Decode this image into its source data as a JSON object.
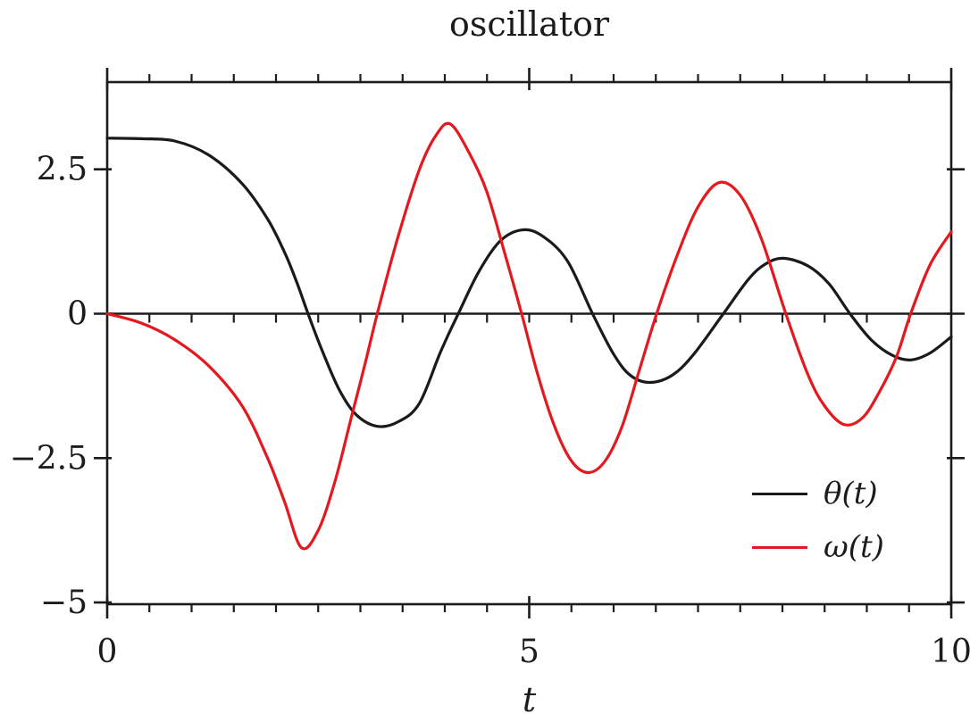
{
  "chart_data": {
    "type": "line",
    "title": "oscillator",
    "xlabel": "t",
    "ylabel": "",
    "xlim": [
      0,
      10
    ],
    "ylim": [
      -5.03,
      4.01
    ],
    "grid": false,
    "frame": "box",
    "zero_axis": true,
    "legend_position": "bottom-right",
    "x_major_ticks": [
      0,
      5,
      10
    ],
    "x_major_labels": [
      "0",
      "5",
      "10"
    ],
    "x_minor_step": 0.5,
    "y_major_ticks": [
      -5,
      -2.5,
      0,
      2.5
    ],
    "y_major_labels": [
      "−5",
      "−2.5",
      "0",
      "2.5"
    ],
    "axis_color": "#1c1c1c",
    "series": [
      {
        "name": "θ(t)",
        "color": "#1a1a1a",
        "points": [
          [
            0.0,
            3.04
          ],
          [
            0.4,
            3.03
          ],
          [
            0.8,
            2.99
          ],
          [
            1.2,
            2.75
          ],
          [
            1.6,
            2.25
          ],
          [
            1.9,
            1.64
          ],
          [
            2.1,
            1.07
          ],
          [
            2.25,
            0.53
          ],
          [
            2.38,
            0.0
          ],
          [
            2.55,
            -0.65
          ],
          [
            2.75,
            -1.32
          ],
          [
            2.95,
            -1.75
          ],
          [
            3.2,
            -1.95
          ],
          [
            3.45,
            -1.87
          ],
          [
            3.7,
            -1.55
          ],
          [
            3.95,
            -0.66
          ],
          [
            4.16,
            0.0
          ],
          [
            4.4,
            0.72
          ],
          [
            4.65,
            1.25
          ],
          [
            4.91,
            1.45
          ],
          [
            5.15,
            1.35
          ],
          [
            5.45,
            0.92
          ],
          [
            5.75,
            0.0
          ],
          [
            6.0,
            -0.7
          ],
          [
            6.2,
            -1.07
          ],
          [
            6.43,
            -1.19
          ],
          [
            6.7,
            -1.06
          ],
          [
            6.95,
            -0.7
          ],
          [
            7.3,
            0.0
          ],
          [
            7.6,
            0.6
          ],
          [
            7.8,
            0.86
          ],
          [
            8.01,
            0.96
          ],
          [
            8.3,
            0.83
          ],
          [
            8.55,
            0.52
          ],
          [
            8.8,
            0.0
          ],
          [
            9.05,
            -0.45
          ],
          [
            9.3,
            -0.72
          ],
          [
            9.52,
            -0.8
          ],
          [
            9.75,
            -0.68
          ],
          [
            10.0,
            -0.4
          ]
        ]
      },
      {
        "name": "ω(t)",
        "color": "#e4181e",
        "points": [
          [
            0.0,
            0.0
          ],
          [
            0.4,
            -0.16
          ],
          [
            0.8,
            -0.45
          ],
          [
            1.2,
            -0.9
          ],
          [
            1.6,
            -1.6
          ],
          [
            1.9,
            -2.5
          ],
          [
            2.1,
            -3.25
          ],
          [
            2.3,
            -4.05
          ],
          [
            2.5,
            -3.75
          ],
          [
            2.7,
            -2.9
          ],
          [
            2.9,
            -1.75
          ],
          [
            3.05,
            -0.9
          ],
          [
            3.2,
            0.0
          ],
          [
            3.45,
            1.35
          ],
          [
            3.7,
            2.5
          ],
          [
            3.9,
            3.1
          ],
          [
            4.07,
            3.28
          ],
          [
            4.3,
            2.75
          ],
          [
            4.5,
            2.1
          ],
          [
            4.7,
            1.1
          ],
          [
            4.91,
            0.0
          ],
          [
            5.1,
            -1.05
          ],
          [
            5.3,
            -1.95
          ],
          [
            5.5,
            -2.55
          ],
          [
            5.7,
            -2.75
          ],
          [
            5.9,
            -2.55
          ],
          [
            6.1,
            -1.95
          ],
          [
            6.3,
            -1.0
          ],
          [
            6.51,
            0.0
          ],
          [
            6.75,
            1.0
          ],
          [
            7.0,
            1.85
          ],
          [
            7.25,
            2.27
          ],
          [
            7.5,
            2.05
          ],
          [
            7.75,
            1.3
          ],
          [
            8.04,
            0.0
          ],
          [
            8.3,
            -1.05
          ],
          [
            8.5,
            -1.6
          ],
          [
            8.73,
            -1.92
          ],
          [
            8.95,
            -1.8
          ],
          [
            9.15,
            -1.35
          ],
          [
            9.35,
            -0.75
          ],
          [
            9.52,
            0.0
          ],
          [
            9.75,
            0.85
          ],
          [
            10.0,
            1.42
          ]
        ]
      }
    ]
  },
  "legend": {
    "entries": [
      "θ(t)",
      "ω(t)"
    ]
  }
}
